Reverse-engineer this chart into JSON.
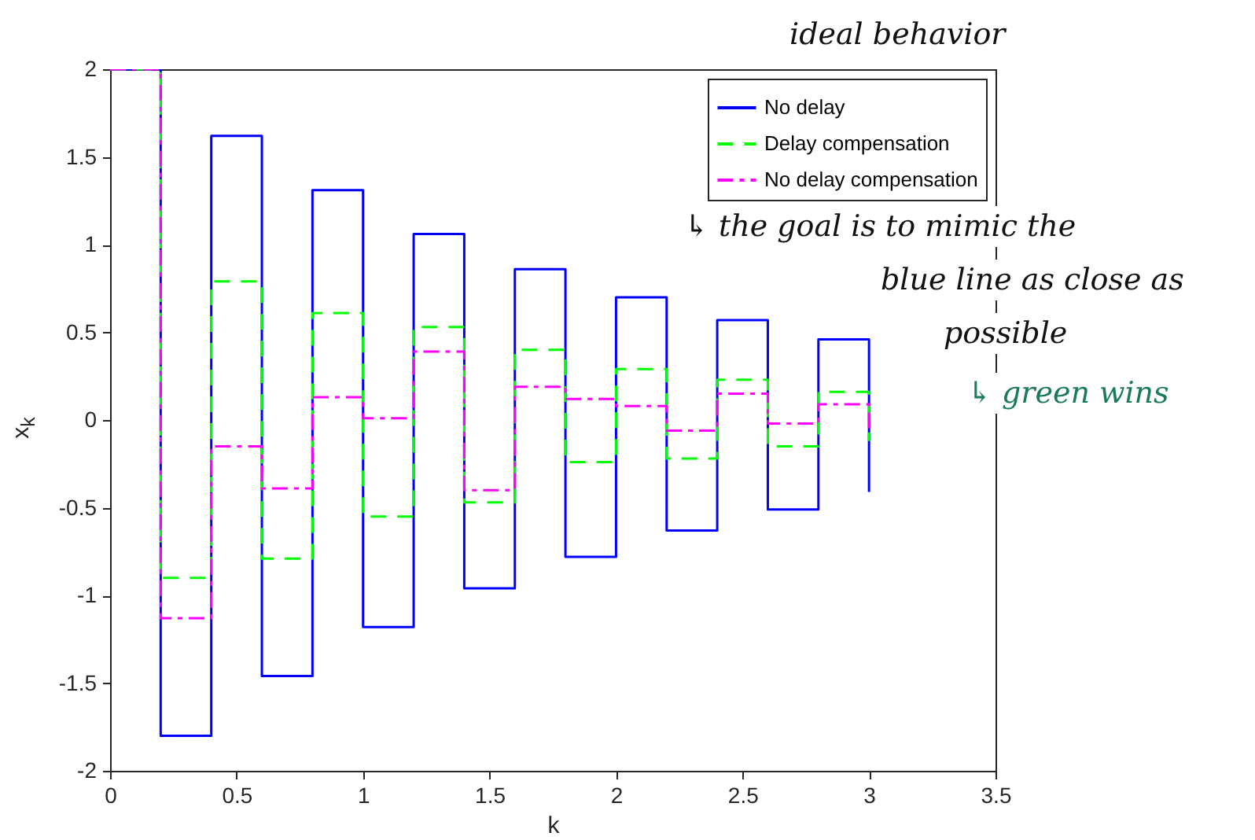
{
  "chart_data": {
    "type": "step",
    "xlabel": "k",
    "ylabel": "x$_{k}$",
    "x": [
      0,
      0.2,
      0.4,
      0.6,
      0.8,
      1.0,
      1.2,
      1.4,
      1.6,
      1.8,
      2.0,
      2.2,
      2.4,
      2.6,
      2.8,
      3.0
    ],
    "series": [
      {
        "name": "No delay",
        "color": "#0000ff",
        "line_style": "solid",
        "values": [
          2,
          -1.8,
          1.62,
          -1.46,
          1.31,
          -1.18,
          1.06,
          -0.96,
          0.86,
          -0.78,
          0.7,
          -0.63,
          0.57,
          -0.51,
          0.46,
          -0.41
        ]
      },
      {
        "name": "Delay compensation",
        "color": "#00ff00",
        "line_style": "dashed",
        "values": [
          2,
          -0.9,
          0.79,
          -0.79,
          0.61,
          -0.55,
          0.53,
          -0.47,
          0.4,
          -0.24,
          0.29,
          -0.22,
          0.23,
          -0.15,
          0.16,
          -0.12
        ]
      },
      {
        "name": "No delay compensation",
        "color": "#ff00ff",
        "line_style": "dashdot",
        "values": [
          2,
          -1.13,
          -0.15,
          -0.39,
          0.13,
          0.01,
          0.39,
          -0.4,
          0.19,
          0.12,
          0.08,
          -0.06,
          0.15,
          -0.02,
          0.09,
          -0.05
        ]
      }
    ],
    "xlim": [
      0,
      3.5
    ],
    "xticks": [
      0,
      0.5,
      1,
      1.5,
      2,
      2.5,
      3,
      3.5
    ],
    "ylim": [
      -2,
      2
    ],
    "yticks": [
      -2,
      -1.5,
      -1,
      -0.5,
      0,
      0.5,
      1,
      1.5,
      2
    ],
    "grid": false,
    "legend": "top right",
    "marker": "none",
    "annotations": [
      "ideal behavior",
      "↳ the goal is to mimic the blue line as close as possible",
      "↳ green wins"
    ]
  }
}
